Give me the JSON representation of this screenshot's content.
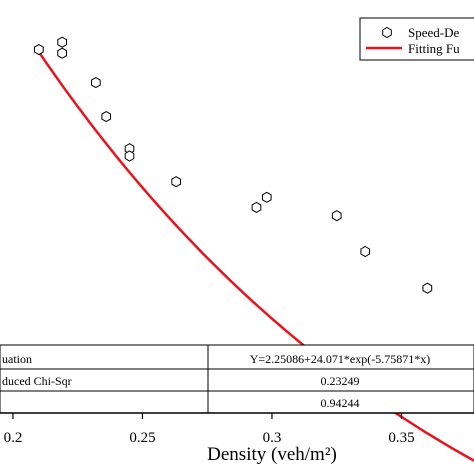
{
  "chart_data": {
    "type": "scatter",
    "xlabel": "Density (veh/m²)",
    "xlim": [
      0.195,
      0.378
    ],
    "ylim": [
      0.55,
      1.0
    ],
    "x_ticks": [
      {
        "value": 0.2,
        "label": "0.2"
      },
      {
        "value": 0.25,
        "label": "0.25"
      },
      {
        "value": 0.3,
        "label": "0.3"
      },
      {
        "value": 0.35,
        "label": "0.35"
      }
    ],
    "series": [
      {
        "name": "Speed-De",
        "marker": "hexagon",
        "color": "#000000",
        "points": [
          {
            "x": 0.21,
            "y": 0.946
          },
          {
            "x": 0.219,
            "y": 0.954
          },
          {
            "x": 0.219,
            "y": 0.942
          },
          {
            "x": 0.232,
            "y": 0.91
          },
          {
            "x": 0.236,
            "y": 0.873
          },
          {
            "x": 0.245,
            "y": 0.838
          },
          {
            "x": 0.245,
            "y": 0.83
          },
          {
            "x": 0.263,
            "y": 0.802
          },
          {
            "x": 0.294,
            "y": 0.774
          },
          {
            "x": 0.298,
            "y": 0.785
          },
          {
            "x": 0.325,
            "y": 0.765
          },
          {
            "x": 0.336,
            "y": 0.726
          },
          {
            "x": 0.36,
            "y": 0.686
          }
        ]
      },
      {
        "name": "Fitting Fu",
        "style": "line",
        "color": "#e8141c",
        "fit": {
          "a": 2.25086,
          "b": 24.071,
          "c": -5.75871
        },
        "x_range": [
          0.21,
          0.378
        ]
      }
    ],
    "table": [
      {
        "label": "uation",
        "value": "Y=2.25086+24.071*exp(-5.75871*x)"
      },
      {
        "label": "duced Chi-Sqr",
        "value": "0.23249"
      },
      {
        "label": "",
        "value": "0.94244"
      }
    ]
  }
}
